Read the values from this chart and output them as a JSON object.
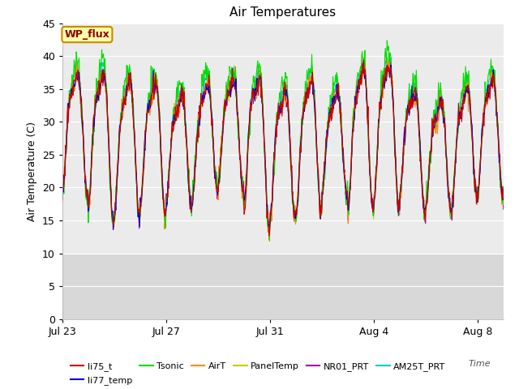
{
  "title": "Air Temperatures",
  "xlabel": "Time",
  "ylabel": "Air Temperature (C)",
  "ylim": [
    0,
    45
  ],
  "yticks": [
    0,
    5,
    10,
    15,
    20,
    25,
    30,
    35,
    40,
    45
  ],
  "background_color": "#ffffff",
  "series": [
    {
      "label": "li75_t",
      "color": "#cc0000"
    },
    {
      "label": "li77_temp",
      "color": "#0000cc"
    },
    {
      "label": "Tsonic",
      "color": "#00dd00"
    },
    {
      "label": "AirT",
      "color": "#ff8800"
    },
    {
      "label": "PanelTemp",
      "color": "#cccc00"
    },
    {
      "label": "NR01_PRT",
      "color": "#aa00aa"
    },
    {
      "label": "AM25T_PRT",
      "color": "#00cccc"
    }
  ],
  "x_tick_labels": [
    "Jul 23",
    "Jul 27",
    "Jul 31",
    "Aug 4",
    "Aug 8"
  ],
  "x_tick_positions": [
    0,
    4,
    8,
    12,
    16
  ],
  "annotation_label": "WP_flux",
  "n_days": 17,
  "n_points_per_day": 48,
  "plot_area_color": "#ebebeb",
  "stripe_color": "#d8d8d8",
  "grid_color": "#ffffff"
}
